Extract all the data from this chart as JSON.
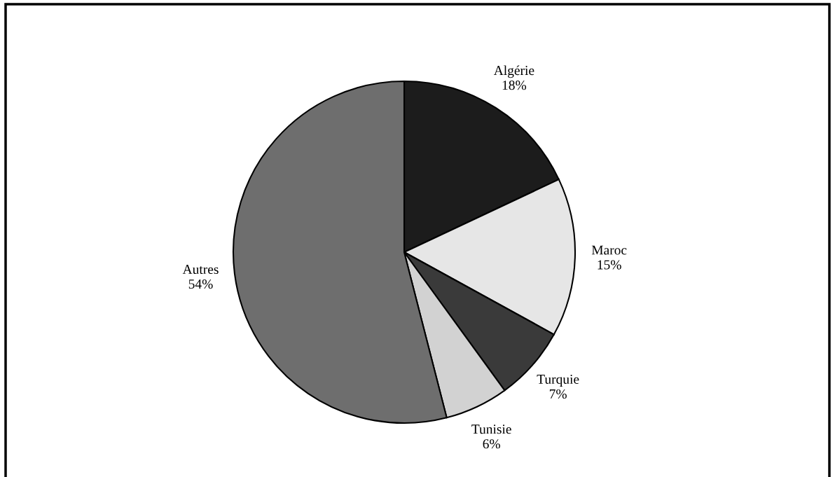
{
  "chart_data": {
    "type": "pie",
    "categories": [
      "Algérie",
      "Maroc",
      "Turquie",
      "Tunisie",
      "Autres"
    ],
    "values": [
      18,
      15,
      7,
      6,
      54
    ],
    "value_labels": [
      "18%",
      "15%",
      "7%",
      "6%",
      "54%"
    ],
    "colors": [
      "#1c1c1c",
      "#e6e6e6",
      "#3a3a3a",
      "#d2d2d2",
      "#6e6e6e"
    ],
    "legend": false
  }
}
